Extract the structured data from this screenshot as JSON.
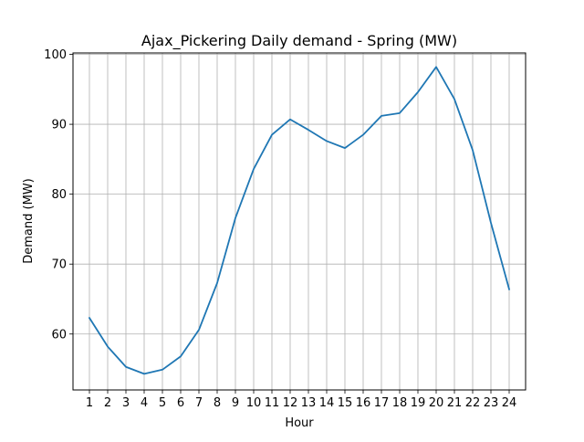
{
  "chart_data": {
    "type": "line",
    "title": "Ajax_Pickering Daily demand - Spring (MW)",
    "xlabel": "Hour",
    "ylabel": "Demand (MW)",
    "x": [
      1,
      2,
      3,
      4,
      5,
      6,
      7,
      8,
      9,
      10,
      11,
      12,
      13,
      14,
      15,
      16,
      17,
      18,
      19,
      20,
      21,
      22,
      23,
      24
    ],
    "x_tick_labels": [
      "1",
      "2",
      "3",
      "4",
      "5",
      "6",
      "7",
      "8",
      "9",
      "10",
      "11",
      "12",
      "13",
      "14",
      "15",
      "16",
      "17",
      "18",
      "19",
      "20",
      "21",
      "22",
      "23",
      "24"
    ],
    "y_ticks": [
      60,
      70,
      80,
      90,
      100
    ],
    "y_tick_labels": [
      "60",
      "70",
      "80",
      "90",
      "100"
    ],
    "xlim": [
      0.1,
      24.9
    ],
    "ylim": [
      52.0,
      100.2
    ],
    "grid": true,
    "legend": false,
    "series": [
      {
        "values": [
          62.3,
          58.2,
          55.3,
          54.3,
          54.9,
          56.8,
          60.6,
          67.3,
          76.6,
          83.6,
          88.5,
          90.7,
          89.2,
          87.6,
          86.6,
          88.5,
          91.2,
          91.6,
          94.6,
          98.2,
          93.6,
          86.3,
          75.9,
          66.4
        ],
        "color": "#1f77b4"
      }
    ]
  }
}
